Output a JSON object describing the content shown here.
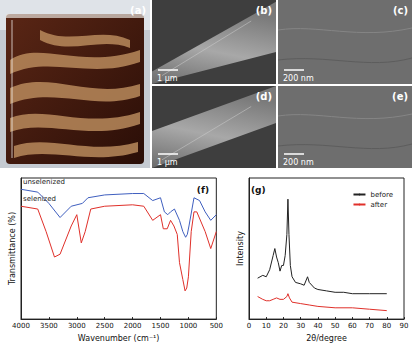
{
  "images": [
    {
      "label": "(a)"
    },
    {
      "label": "(b)",
      "scale_bar": "1 μm"
    },
    {
      "label": "(c)",
      "scale_bar": "200 nm"
    },
    {
      "label": "(d)",
      "scale_bar": "1 μm"
    },
    {
      "label": "(e)",
      "scale_bar": "200 nm"
    }
  ],
  "chart_data": [
    {
      "type": "line",
      "title": "(f)",
      "x_label": "Wavenumber (cm⁻¹)",
      "y_label": "Transmittance (%)",
      "xlim": [
        4000,
        500
      ],
      "xticks": [
        4000,
        3500,
        3000,
        2500,
        2000,
        1500,
        1000,
        500
      ],
      "ylim": [
        0,
        100
      ],
      "tick_labels": "x",
      "grid": false,
      "series": [
        {
          "name": "unselenized",
          "color": "#3f5fbf",
          "x": [
            4000,
            3700,
            3500,
            3300,
            3100,
            2900,
            2800,
            2500,
            2000,
            1800,
            1640,
            1500,
            1430,
            1370,
            1320,
            1250,
            1160,
            1100,
            1050,
            1020,
            990,
            900,
            800,
            700,
            600,
            500
          ],
          "values": [
            92,
            90,
            82,
            72,
            80,
            82,
            86,
            88,
            89,
            89,
            84,
            86,
            76,
            74,
            76,
            78,
            70,
            62,
            58,
            60,
            66,
            86,
            84,
            76,
            70,
            74
          ]
        },
        {
          "name": "selenized",
          "color": "#e0302a",
          "x": [
            4000,
            3700,
            3550,
            3400,
            3300,
            3100,
            3000,
            2920,
            2850,
            2750,
            2500,
            2000,
            1800,
            1640,
            1500,
            1450,
            1380,
            1320,
            1260,
            1200,
            1160,
            1100,
            1060,
            1030,
            1000,
            950,
            900,
            850,
            700,
            600,
            500
          ],
          "values": [
            80,
            78,
            62,
            44,
            46,
            66,
            74,
            54,
            62,
            78,
            80,
            81,
            80,
            70,
            74,
            64,
            64,
            70,
            66,
            60,
            40,
            28,
            20,
            22,
            30,
            62,
            76,
            76,
            62,
            50,
            62
          ]
        }
      ]
    },
    {
      "type": "line",
      "title": "(g)",
      "x_label": "2θ/degree",
      "y_label": "Intensity",
      "xlim": [
        0,
        90
      ],
      "xticks": [
        0,
        10,
        20,
        30,
        40,
        50,
        60,
        70,
        80,
        90
      ],
      "ylim": [
        0,
        100
      ],
      "tick_labels": "x",
      "grid": false,
      "legend": "upper right",
      "series": [
        {
          "name": "before",
          "color": "#222222",
          "x": [
            5,
            8,
            10,
            12,
            14,
            15,
            16,
            17,
            18,
            19,
            20,
            21,
            22,
            22.6,
            23.2,
            24,
            25,
            27,
            30,
            32,
            34,
            35,
            38,
            40,
            45,
            50,
            55,
            60,
            70,
            80
          ],
          "values": [
            29,
            31,
            30,
            35,
            45,
            50,
            44,
            40,
            34,
            38,
            38,
            45,
            60,
            85,
            60,
            38,
            30,
            26,
            25,
            24,
            30,
            26,
            22,
            21,
            20,
            19,
            19,
            18,
            18,
            18
          ]
        },
        {
          "name": "after",
          "color": "#e0302a",
          "x": [
            5,
            8,
            10,
            12,
            14,
            16,
            18,
            20,
            22,
            22.6,
            23.5,
            25,
            30,
            35,
            40,
            50,
            60,
            70,
            80
          ],
          "values": [
            16,
            14,
            13,
            13,
            14,
            15,
            14,
            14,
            16,
            18,
            15,
            12,
            11,
            10,
            9,
            8,
            8,
            7,
            6
          ]
        }
      ]
    }
  ]
}
